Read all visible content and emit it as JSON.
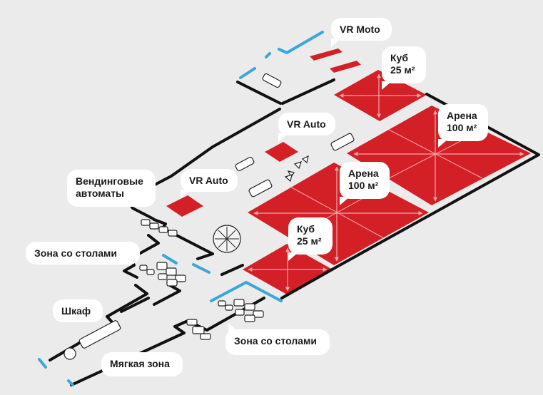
{
  "map": {
    "zones": [
      {
        "id": "vr-moto",
        "name": "VR Moto"
      },
      {
        "id": "cube-1",
        "name": "Куб",
        "area": "25 м²"
      },
      {
        "id": "arena-1",
        "name": "Арена",
        "area": "100 м²"
      },
      {
        "id": "vr-auto-1",
        "name": "VR Auto"
      },
      {
        "id": "arena-2",
        "name": "Арена",
        "area": "100 м²"
      },
      {
        "id": "vending",
        "name": "Вендинговые автоматы"
      },
      {
        "id": "vr-auto-2",
        "name": "VR Auto"
      },
      {
        "id": "cube-2",
        "name": "Куб",
        "area": "25 м²"
      },
      {
        "id": "tables-1",
        "name": "Зона со столами"
      },
      {
        "id": "wardrobe",
        "name": "Шкаф"
      },
      {
        "id": "tables-2",
        "name": "Зона со столами"
      },
      {
        "id": "soft-zone",
        "name": "Мягкая зона"
      }
    ],
    "colors": {
      "background": "#ebebeb",
      "zone_fill": "#d32027",
      "zone_arrows": "#f2a8a8",
      "wall": "#111111",
      "window": "#3aa6dc",
      "label_bg": "#ffffff"
    }
  }
}
